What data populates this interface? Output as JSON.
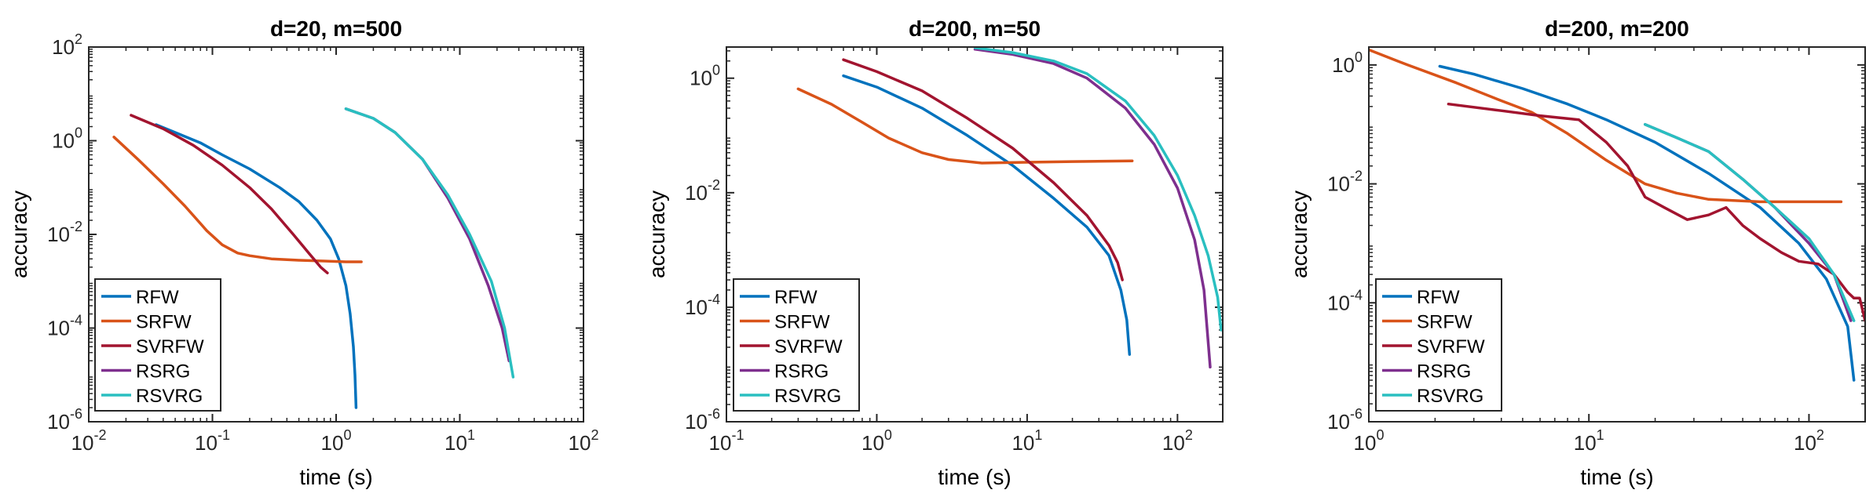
{
  "chart_data": [
    {
      "type": "line",
      "title": "d=20, m=500",
      "xlabel": "time (s)",
      "ylabel": "accuracy",
      "xscale": "log",
      "yscale": "log",
      "xlim": [
        0.01,
        100
      ],
      "ylim": [
        1e-06,
        100
      ],
      "xticks": [
        {
          "v": 0.01,
          "b": "10",
          "e": "-2"
        },
        {
          "v": 0.1,
          "b": "10",
          "e": "-1"
        },
        {
          "v": 1,
          "b": "10",
          "e": "0"
        },
        {
          "v": 10,
          "b": "10",
          "e": "1"
        },
        {
          "v": 100,
          "b": "10",
          "e": "2"
        }
      ],
      "yticks": [
        {
          "v": 1e-06,
          "b": "10",
          "e": "-6"
        },
        {
          "v": 0.0001,
          "b": "10",
          "e": "-4"
        },
        {
          "v": 0.01,
          "b": "10",
          "e": "-2"
        },
        {
          "v": 1,
          "b": "10",
          "e": "0"
        },
        {
          "v": 100,
          "b": "10",
          "e": "2"
        }
      ],
      "legend_position": "bottom-left",
      "series": [
        {
          "name": "RFW",
          "color": "#0072BD",
          "x": [
            0.035,
            0.05,
            0.08,
            0.12,
            0.2,
            0.35,
            0.5,
            0.7,
            0.9,
            1.05,
            1.2,
            1.3,
            1.38,
            1.42,
            1.45
          ],
          "y": [
            2.2,
            1.5,
            0.9,
            0.5,
            0.25,
            0.1,
            0.05,
            0.02,
            0.008,
            0.003,
            0.0008,
            0.0002,
            4e-05,
            1e-05,
            2e-06
          ]
        },
        {
          "name": "SRFW",
          "color": "#D95319",
          "x": [
            0.016,
            0.025,
            0.04,
            0.06,
            0.09,
            0.12,
            0.16,
            0.2,
            0.3,
            0.5,
            0.8,
            1.2,
            1.6
          ],
          "y": [
            1.2,
            0.4,
            0.12,
            0.04,
            0.012,
            0.006,
            0.004,
            0.0035,
            0.003,
            0.0028,
            0.0027,
            0.0026,
            0.0026
          ]
        },
        {
          "name": "SVRFW",
          "color": "#A2142F",
          "x": [
            0.022,
            0.04,
            0.07,
            0.12,
            0.2,
            0.3,
            0.45,
            0.6,
            0.75,
            0.85
          ],
          "y": [
            3.5,
            1.8,
            0.8,
            0.3,
            0.1,
            0.035,
            0.01,
            0.004,
            0.002,
            0.0015
          ]
        },
        {
          "name": "RSRG",
          "color": "#7E2F8E",
          "x": [
            1.2,
            2,
            3,
            5,
            8,
            12,
            17,
            22,
            25
          ],
          "y": [
            4.8,
            3,
            1.5,
            0.4,
            0.06,
            0.008,
            0.0008,
            0.0001,
            2e-05
          ]
        },
        {
          "name": "RSVRG",
          "color": "#29BFC0",
          "x": [
            1.2,
            2,
            3,
            5,
            8,
            12,
            18,
            23,
            27
          ],
          "y": [
            4.8,
            3,
            1.5,
            0.4,
            0.07,
            0.01,
            0.001,
            0.0001,
            9e-06
          ]
        }
      ]
    },
    {
      "type": "line",
      "title": "d=200, m=50",
      "xlabel": "time (s)",
      "ylabel": "accuracy",
      "xscale": "log",
      "yscale": "log",
      "xlim": [
        0.1,
        200
      ],
      "ylim": [
        1e-06,
        3.5
      ],
      "xticks": [
        {
          "v": 0.1,
          "b": "10",
          "e": "-1"
        },
        {
          "v": 1,
          "b": "10",
          "e": "0"
        },
        {
          "v": 10,
          "b": "10",
          "e": "1"
        },
        {
          "v": 100,
          "b": "10",
          "e": "2"
        }
      ],
      "yticks": [
        {
          "v": 1e-06,
          "b": "10",
          "e": "-6"
        },
        {
          "v": 0.0001,
          "b": "10",
          "e": "-4"
        },
        {
          "v": 0.01,
          "b": "10",
          "e": "-2"
        },
        {
          "v": 1,
          "b": "10",
          "e": "0"
        }
      ],
      "legend_position": "bottom-left",
      "series": [
        {
          "name": "RFW",
          "color": "#0072BD",
          "x": [
            0.6,
            1,
            2,
            4,
            8,
            15,
            25,
            35,
            42,
            46,
            48
          ],
          "y": [
            1.1,
            0.7,
            0.3,
            0.1,
            0.03,
            0.008,
            0.0025,
            0.0008,
            0.0002,
            6e-05,
            1.5e-05
          ]
        },
        {
          "name": "SRFW",
          "color": "#D95319",
          "x": [
            0.3,
            0.5,
            0.8,
            1.2,
            2,
            3,
            5,
            10,
            20,
            50
          ],
          "y": [
            0.65,
            0.35,
            0.17,
            0.09,
            0.05,
            0.038,
            0.033,
            0.034,
            0.035,
            0.036
          ]
        },
        {
          "name": "SVRFW",
          "color": "#A2142F",
          "x": [
            0.6,
            1,
            2,
            4,
            8,
            15,
            25,
            35,
            40,
            43
          ],
          "y": [
            2.1,
            1.3,
            0.6,
            0.2,
            0.06,
            0.015,
            0.004,
            0.0012,
            0.0006,
            0.0003
          ]
        },
        {
          "name": "RSRG",
          "color": "#7E2F8E",
          "x": [
            4.5,
            8,
            15,
            25,
            45,
            70,
            100,
            130,
            150,
            165
          ],
          "y": [
            3.2,
            2.6,
            1.8,
            1,
            0.3,
            0.07,
            0.012,
            0.0015,
            0.0002,
            9e-06
          ]
        },
        {
          "name": "RSVRG",
          "color": "#29BFC0",
          "x": [
            4.5,
            8,
            15,
            25,
            45,
            70,
            100,
            130,
            160,
            185,
            195
          ],
          "y": [
            3.4,
            2.8,
            2,
            1.2,
            0.4,
            0.1,
            0.02,
            0.004,
            0.0008,
            0.00015,
            4e-05
          ]
        }
      ]
    },
    {
      "type": "line",
      "title": "d=200, m=200",
      "xlabel": "time (s)",
      "ylabel": "accuracy",
      "xscale": "log",
      "yscale": "log",
      "xlim": [
        1,
        180
      ],
      "ylim": [
        1e-06,
        2
      ],
      "xticks": [
        {
          "v": 1,
          "b": "10",
          "e": "0"
        },
        {
          "v": 10,
          "b": "10",
          "e": "1"
        },
        {
          "v": 100,
          "b": "10",
          "e": "2"
        }
      ],
      "yticks": [
        {
          "v": 1e-06,
          "b": "10",
          "e": "-6"
        },
        {
          "v": 0.0001,
          "b": "10",
          "e": "-4"
        },
        {
          "v": 0.01,
          "b": "10",
          "e": "-2"
        },
        {
          "v": 1,
          "b": "10",
          "e": "0"
        }
      ],
      "legend_position": "bottom-left",
      "series": [
        {
          "name": "RFW",
          "color": "#0072BD",
          "x": [
            2.1,
            3,
            5,
            8,
            12,
            20,
            35,
            60,
            90,
            120,
            150,
            160
          ],
          "y": [
            0.95,
            0.7,
            0.4,
            0.22,
            0.12,
            0.05,
            0.015,
            0.004,
            0.001,
            0.00025,
            4e-05,
            5e-06
          ]
        },
        {
          "name": "SRFW",
          "color": "#D95319",
          "x": [
            1,
            1.5,
            2.5,
            4,
            5.5,
            8,
            12,
            18,
            25,
            35,
            60,
            100,
            140
          ],
          "y": [
            1.8,
            1,
            0.5,
            0.25,
            0.16,
            0.07,
            0.025,
            0.01,
            0.007,
            0.0055,
            0.005,
            0.005,
            0.005
          ]
        },
        {
          "name": "SVRFW",
          "color": "#A2142F",
          "x": [
            2.3,
            4,
            6,
            9,
            12,
            15,
            18,
            22,
            28,
            35,
            42,
            50,
            60,
            75,
            90,
            110,
            130,
            150,
            160,
            170,
            180
          ],
          "y": [
            0.22,
            0.17,
            0.14,
            0.12,
            0.05,
            0.02,
            0.006,
            0.004,
            0.0025,
            0.003,
            0.004,
            0.002,
            0.0012,
            0.0007,
            0.0005,
            0.00045,
            0.0003,
            0.00015,
            0.00012,
            0.00012,
            5e-05
          ]
        },
        {
          "name": "RSRG",
          "color": "#7E2F8E",
          "x": [
            18,
            25,
            35,
            50,
            70,
            100,
            130,
            155
          ],
          "y": [
            0.1,
            0.06,
            0.035,
            0.012,
            0.004,
            0.001,
            0.0003,
            5e-05
          ]
        },
        {
          "name": "RSVRG",
          "color": "#29BFC0",
          "x": [
            18,
            25,
            35,
            50,
            70,
            100,
            130,
            160
          ],
          "y": [
            0.1,
            0.06,
            0.035,
            0.012,
            0.004,
            0.0012,
            0.0003,
            5e-05
          ]
        }
      ]
    }
  ]
}
